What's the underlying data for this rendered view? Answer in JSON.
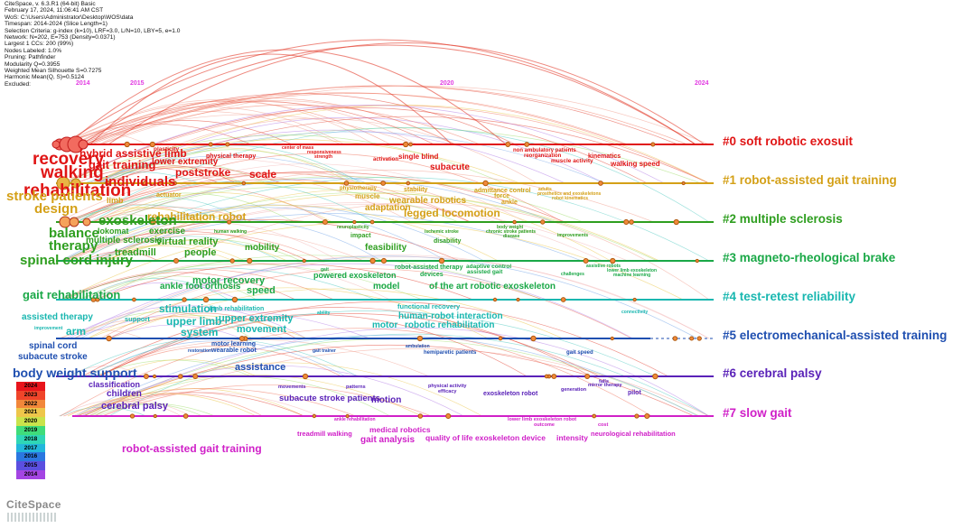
{
  "info_lines": [
    "CiteSpace, v. 6.3.R1 (64-bit) Basic",
    "February 17, 2024, 11:06:41 AM CST",
    "WoS: C:\\Users\\Administrator\\Desktop\\WOS\\data",
    "Timespan: 2014-2024 (Slice Length=1)",
    "Selection Criteria: g-index (k=10), LRF=3.0, L/N=10, LBY=5, e=1.0",
    "Network: N=202, E=753 (Density=0.0371)",
    "Largest 1 CCs: 200 (99%)",
    "Nodes Labeled: 1.0%",
    "Pruning: Pathfinder",
    "Modularity Q=0.3955",
    "Weighted Mean Silhouette S=0.7275",
    "Harmonic Mean(Q, S)=0.5124",
    "Excluded:"
  ],
  "years": [
    "2014",
    "2015",
    "2020",
    "2024"
  ],
  "clusters": [
    {
      "label": "#0 soft robotic exosuit",
      "color": "#e01515"
    },
    {
      "label": "#1 robot-assisted gait training",
      "color": "#d4a017"
    },
    {
      "label": "#2 multiple sclerosis",
      "color": "#2e9e1f"
    },
    {
      "label": "#3 magneto-rheological brake",
      "color": "#1aa847"
    },
    {
      "label": "#4 test-retest reliability",
      "color": "#19b7b0"
    },
    {
      "label": "#5 electromechanical-assisted training",
      "color": "#1f4fb0"
    },
    {
      "label": "#6 cerebral palsy",
      "color": "#5a22b8"
    },
    {
      "label": "#7 slow gait",
      "color": "#d020c8"
    }
  ],
  "keywords": [
    {
      "t": "hybrid assistive limb",
      "c": "#e01515"
    },
    {
      "t": "plasticity",
      "c": "#e01515"
    },
    {
      "t": "physical therapy",
      "c": "#e01515"
    },
    {
      "t": "center of mass",
      "c": "#e01515"
    },
    {
      "t": "responsiveness",
      "c": "#e01515"
    },
    {
      "t": "strength",
      "c": "#e01515"
    },
    {
      "t": "activation",
      "c": "#e01515"
    },
    {
      "t": "single blind",
      "c": "#e01515"
    },
    {
      "t": "non ambulatory patients",
      "c": "#e01515"
    },
    {
      "t": "reorganization",
      "c": "#e01515"
    },
    {
      "t": "muscle activity",
      "c": "#e01515"
    },
    {
      "t": "kinematics",
      "c": "#e01515"
    },
    {
      "t": "walking speed",
      "c": "#e01515"
    },
    {
      "t": "recovery",
      "c": "#e01515"
    },
    {
      "t": "gait training",
      "c": "#e01515"
    },
    {
      "t": "lower extremity",
      "c": "#e01515"
    },
    {
      "t": "poststroke",
      "c": "#e01515"
    },
    {
      "t": "scale",
      "c": "#e01515"
    },
    {
      "t": "subacute",
      "c": "#e01515"
    },
    {
      "t": "walking",
      "c": "#e01515"
    },
    {
      "t": "individuals",
      "c": "#e01515"
    },
    {
      "t": "rehabilitation",
      "c": "#e01515"
    },
    {
      "t": "physiotherapy",
      "c": "#d4a017"
    },
    {
      "t": "stability",
      "c": "#d4a017"
    },
    {
      "t": "admittance control",
      "c": "#d4a017"
    },
    {
      "t": "adults",
      "c": "#d4a017"
    },
    {
      "t": "prosthetics and exoskeletons",
      "c": "#d4a017"
    },
    {
      "t": "robot kinematics",
      "c": "#d4a017"
    },
    {
      "t": "force",
      "c": "#d4a017"
    },
    {
      "t": "ankle",
      "c": "#d4a017"
    },
    {
      "t": "muscle",
      "c": "#d4a017"
    },
    {
      "t": "wearable robotics",
      "c": "#d4a017"
    },
    {
      "t": "adaptation",
      "c": "#d4a017"
    },
    {
      "t": "stroke patients",
      "c": "#d4a017"
    },
    {
      "t": "actuator",
      "c": "#d4a017"
    },
    {
      "t": "limb",
      "c": "#d4a017"
    },
    {
      "t": "design",
      "c": "#d4a017"
    },
    {
      "t": "rehabilitation robot",
      "c": "#d4a017"
    },
    {
      "t": "legged locomotion",
      "c": "#d4a017"
    },
    {
      "t": "exoskeleton",
      "c": "#2e9e1f"
    },
    {
      "t": "lokomat",
      "c": "#2e9e1f"
    },
    {
      "t": "balance",
      "c": "#2e9e1f"
    },
    {
      "t": "exercise",
      "c": "#2e9e1f"
    },
    {
      "t": "virtual reality",
      "c": "#2e9e1f"
    },
    {
      "t": "therapy",
      "c": "#2e9e1f"
    },
    {
      "t": "multiple sclerosis",
      "c": "#2e9e1f"
    },
    {
      "t": "treadmill",
      "c": "#2e9e1f"
    },
    {
      "t": "people",
      "c": "#2e9e1f"
    },
    {
      "t": "human walking",
      "c": "#2e9e1f"
    },
    {
      "t": "neuroplasticity",
      "c": "#2e9e1f"
    },
    {
      "t": "impact",
      "c": "#2e9e1f"
    },
    {
      "t": "ischemic stroke",
      "c": "#2e9e1f"
    },
    {
      "t": "body weight",
      "c": "#2e9e1f"
    },
    {
      "t": "chronic stroke patients",
      "c": "#2e9e1f"
    },
    {
      "t": "disease",
      "c": "#2e9e1f"
    },
    {
      "t": "improvements",
      "c": "#2e9e1f"
    },
    {
      "t": "disability",
      "c": "#2e9e1f"
    },
    {
      "t": "feasibility",
      "c": "#2e9e1f"
    },
    {
      "t": "mobility",
      "c": "#2e9e1f"
    },
    {
      "t": "spinal cord injury",
      "c": "#2e9e1f"
    },
    {
      "t": "gait",
      "c": "#1aa847"
    },
    {
      "t": "powered exoskeleton",
      "c": "#1aa847"
    },
    {
      "t": "robot-assisted therapy",
      "c": "#1aa847"
    },
    {
      "t": "devices",
      "c": "#1aa847"
    },
    {
      "t": "adaptive control",
      "c": "#1aa847"
    },
    {
      "t": "assisted gait",
      "c": "#1aa847"
    },
    {
      "t": "challenges",
      "c": "#1aa847"
    },
    {
      "t": "assistive robots",
      "c": "#1aa847"
    },
    {
      "t": "lower limb exoskeleton",
      "c": "#1aa847"
    },
    {
      "t": "machine learning",
      "c": "#1aa847"
    },
    {
      "t": "motor recovery",
      "c": "#1aa847"
    },
    {
      "t": "ankle foot orthosis",
      "c": "#1aa847"
    },
    {
      "t": "speed",
      "c": "#1aa847"
    },
    {
      "t": "model",
      "c": "#1aa847"
    },
    {
      "t": "of the art robotic exoskeleton",
      "c": "#1aa847"
    },
    {
      "t": "gait rehabilitation",
      "c": "#1aa847"
    },
    {
      "t": "limb rehabilitation",
      "c": "#19b7b0"
    },
    {
      "t": "functional recovery",
      "c": "#19b7b0"
    },
    {
      "t": "human-robot interaction",
      "c": "#19b7b0"
    },
    {
      "t": "robotic rehabilitation",
      "c": "#19b7b0"
    },
    {
      "t": "motor",
      "c": "#19b7b0"
    },
    {
      "t": "connectivity",
      "c": "#19b7b0"
    },
    {
      "t": "assisted therapy",
      "c": "#19b7b0"
    },
    {
      "t": "support",
      "c": "#19b7b0"
    },
    {
      "t": "stimulation",
      "c": "#19b7b0"
    },
    {
      "t": "upper limb",
      "c": "#19b7b0"
    },
    {
      "t": "upper extremity",
      "c": "#19b7b0"
    },
    {
      "t": "movement",
      "c": "#19b7b0"
    },
    {
      "t": "ability",
      "c": "#19b7b0"
    },
    {
      "t": "system",
      "c": "#19b7b0"
    },
    {
      "t": "arm",
      "c": "#19b7b0"
    },
    {
      "t": "improvement",
      "c": "#19b7b0"
    },
    {
      "t": "motor learning",
      "c": "#1f4fb0"
    },
    {
      "t": "wearable robot",
      "c": "#1f4fb0"
    },
    {
      "t": "restoration",
      "c": "#1f4fb0"
    },
    {
      "t": "gait trainer",
      "c": "#1f4fb0"
    },
    {
      "t": "ambulation",
      "c": "#1f4fb0"
    },
    {
      "t": "hemiparetic patients",
      "c": "#1f4fb0"
    },
    {
      "t": "gait speed",
      "c": "#1f4fb0"
    },
    {
      "t": "spinal cord",
      "c": "#1f4fb0"
    },
    {
      "t": "subacute stroke",
      "c": "#1f4fb0"
    },
    {
      "t": "assistance",
      "c": "#1f4fb0"
    },
    {
      "t": "body weight support",
      "c": "#1f4fb0"
    },
    {
      "t": "classification",
      "c": "#5a22b8"
    },
    {
      "t": "children",
      "c": "#5a22b8"
    },
    {
      "t": "cerebral palsy",
      "c": "#5a22b8"
    },
    {
      "t": "movements",
      "c": "#5a22b8"
    },
    {
      "t": "patterns",
      "c": "#5a22b8"
    },
    {
      "t": "physical activity",
      "c": "#5a22b8"
    },
    {
      "t": "efficacy",
      "c": "#5a22b8"
    },
    {
      "t": "exoskeleton robot",
      "c": "#5a22b8"
    },
    {
      "t": "generation",
      "c": "#5a22b8"
    },
    {
      "t": "falls",
      "c": "#5a22b8"
    },
    {
      "t": "mirror therapy",
      "c": "#5a22b8"
    },
    {
      "t": "pilot",
      "c": "#5a22b8"
    },
    {
      "t": "subacute stroke patients",
      "c": "#5a22b8"
    },
    {
      "t": "motion",
      "c": "#5a22b8"
    },
    {
      "t": "ankle rehabilitation",
      "c": "#d020c8"
    },
    {
      "t": "medical robotics",
      "c": "#d020c8"
    },
    {
      "t": "lower limb exoskeleton robot",
      "c": "#d020c8"
    },
    {
      "t": "outcome",
      "c": "#d020c8"
    },
    {
      "t": "cost",
      "c": "#d020c8"
    },
    {
      "t": "treadmill walking",
      "c": "#d020c8"
    },
    {
      "t": "gait analysis",
      "c": "#d020c8"
    },
    {
      "t": "quality of life",
      "c": "#d020c8"
    },
    {
      "t": "exoskeleton device",
      "c": "#d020c8"
    },
    {
      "t": "intensity",
      "c": "#d020c8"
    },
    {
      "t": "neurological rehabilitation",
      "c": "#d020c8"
    },
    {
      "t": "robot-assisted gait training",
      "c": "#d020c8"
    }
  ],
  "legend": [
    {
      "year": "2024",
      "color": "#e8141b"
    },
    {
      "year": "2023",
      "color": "#f0452a"
    },
    {
      "year": "2022",
      "color": "#f2873a"
    },
    {
      "year": "2021",
      "color": "#eec64a"
    },
    {
      "year": "2020",
      "color": "#c9e34b"
    },
    {
      "year": "2019",
      "color": "#3fdc7a"
    },
    {
      "year": "2018",
      "color": "#2fd6b6"
    },
    {
      "year": "2017",
      "color": "#22b7dc"
    },
    {
      "year": "2016",
      "color": "#2b77e0"
    },
    {
      "year": "2015",
      "color": "#5b4fe0"
    },
    {
      "year": "2014",
      "color": "#a445e3"
    }
  ],
  "logo_text": "CiteSpace"
}
